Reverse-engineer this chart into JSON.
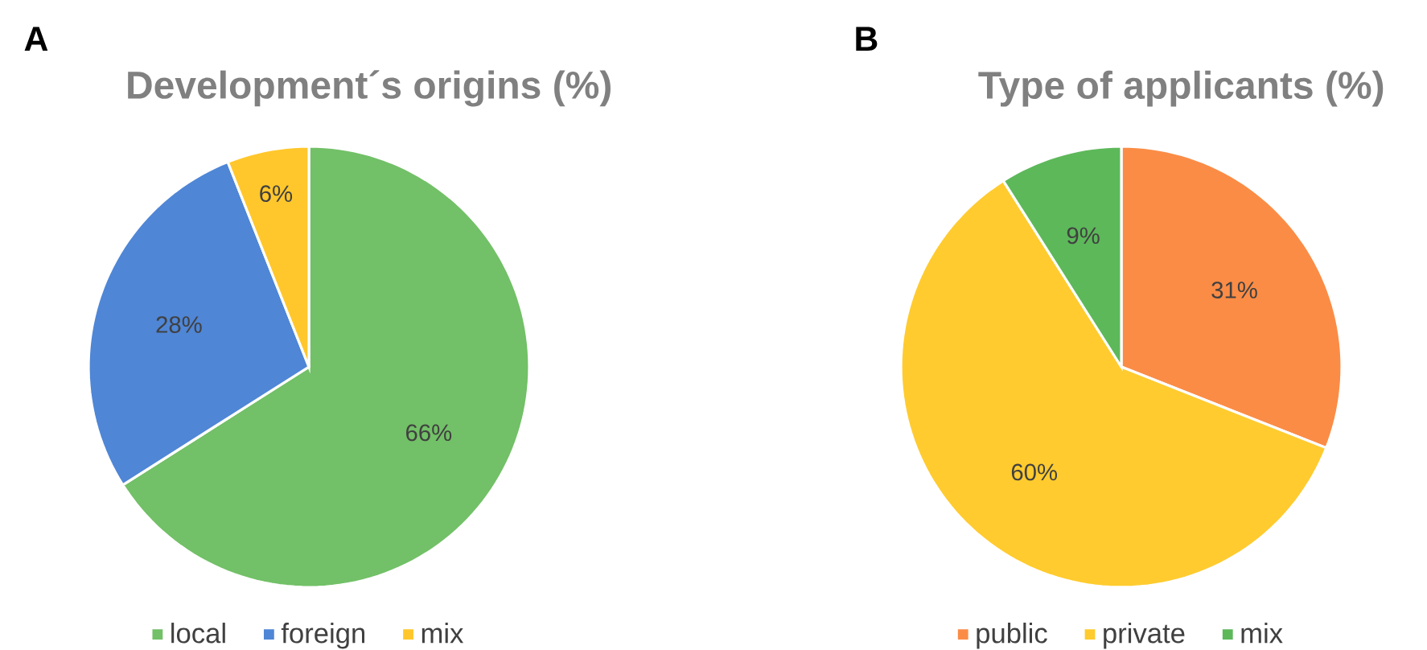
{
  "chart_data": [
    {
      "type": "pie",
      "title": "Development´s origins (%)",
      "annotations": [
        "A"
      ],
      "categories": [
        "local",
        "foreign",
        "mix"
      ],
      "values": [
        66,
        28,
        6
      ],
      "value_labels": [
        "66%",
        "28%",
        "6%"
      ],
      "colors": [
        "#72c067",
        "#4f86d6",
        "#ffc72c"
      ],
      "legend": "bottom"
    },
    {
      "type": "pie",
      "title": "Type of applicants (%)",
      "annotations": [
        "B"
      ],
      "categories": [
        "public",
        "private",
        "mix"
      ],
      "values": [
        31,
        60,
        9
      ],
      "value_labels": [
        "31%",
        "60%",
        "9%"
      ],
      "colors": [
        "#fb8c46",
        "#ffcb2e",
        "#5db85a"
      ],
      "legend": "bottom"
    }
  ]
}
